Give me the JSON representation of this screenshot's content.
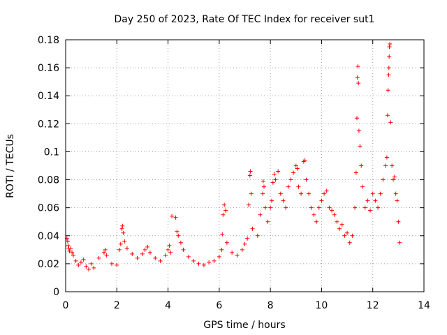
{
  "chart_data": {
    "type": "scatter",
    "title": "Day 250 of 2023, Rate Of TEC Index for receiver sut1",
    "xlabel": "GPS time / hours",
    "ylabel": "ROTI / TECUs",
    "xlim": [
      0,
      14
    ],
    "ylim": [
      0,
      0.18
    ],
    "xticks": [
      0,
      2,
      4,
      6,
      8,
      10,
      12,
      14
    ],
    "xtick_labels": [
      "0",
      "2",
      "4",
      "6",
      "8",
      "10",
      "12",
      "14"
    ],
    "yticks": [
      0,
      0.02,
      0.04,
      0.06,
      0.08,
      0.1,
      0.12,
      0.14,
      0.16,
      0.18
    ],
    "ytick_labels": [
      "0",
      "0.02",
      "0.04",
      "0.06",
      "0.08",
      "0.1",
      "0.12",
      "0.14",
      "0.16",
      "0.18"
    ],
    "grid": true,
    "marker": "+",
    "color": "#ff0000",
    "series": [
      {
        "name": "ROTI",
        "points": [
          [
            0.05,
            0.038
          ],
          [
            0.08,
            0.036
          ],
          [
            0.1,
            0.033
          ],
          [
            0.12,
            0.031
          ],
          [
            0.15,
            0.029
          ],
          [
            0.2,
            0.031
          ],
          [
            0.25,
            0.028
          ],
          [
            0.3,
            0.026
          ],
          [
            0.4,
            0.022
          ],
          [
            0.5,
            0.019
          ],
          [
            0.6,
            0.021
          ],
          [
            0.7,
            0.023
          ],
          [
            0.8,
            0.018
          ],
          [
            0.9,
            0.016
          ],
          [
            1.0,
            0.02
          ],
          [
            1.1,
            0.017
          ],
          [
            1.3,
            0.024
          ],
          [
            1.5,
            0.028
          ],
          [
            1.55,
            0.03
          ],
          [
            1.6,
            0.026
          ],
          [
            1.8,
            0.02
          ],
          [
            2.0,
            0.019
          ],
          [
            2.1,
            0.03
          ],
          [
            2.15,
            0.034
          ],
          [
            2.2,
            0.045
          ],
          [
            2.22,
            0.047
          ],
          [
            2.25,
            0.042
          ],
          [
            2.3,
            0.036
          ],
          [
            2.4,
            0.031
          ],
          [
            2.6,
            0.027
          ],
          [
            2.8,
            0.024
          ],
          [
            3.0,
            0.027
          ],
          [
            3.1,
            0.03
          ],
          [
            3.2,
            0.032
          ],
          [
            3.3,
            0.028
          ],
          [
            3.5,
            0.024
          ],
          [
            3.7,
            0.022
          ],
          [
            3.9,
            0.026
          ],
          [
            4.0,
            0.03
          ],
          [
            4.05,
            0.033
          ],
          [
            4.1,
            0.028
          ],
          [
            4.15,
            0.054
          ],
          [
            4.3,
            0.053
          ],
          [
            4.35,
            0.043
          ],
          [
            4.4,
            0.04
          ],
          [
            4.5,
            0.035
          ],
          [
            4.6,
            0.03
          ],
          [
            4.8,
            0.025
          ],
          [
            5.0,
            0.022
          ],
          [
            5.2,
            0.02
          ],
          [
            5.4,
            0.019
          ],
          [
            5.6,
            0.021
          ],
          [
            5.8,
            0.022
          ],
          [
            6.0,
            0.025
          ],
          [
            6.1,
            0.03
          ],
          [
            6.12,
            0.041
          ],
          [
            6.15,
            0.055
          ],
          [
            6.2,
            0.062
          ],
          [
            6.25,
            0.058
          ],
          [
            6.3,
            0.035
          ],
          [
            6.5,
            0.028
          ],
          [
            6.7,
            0.026
          ],
          [
            6.9,
            0.03
          ],
          [
            7.0,
            0.034
          ],
          [
            7.1,
            0.038
          ],
          [
            7.15,
            0.062
          ],
          [
            7.2,
            0.083
          ],
          [
            7.22,
            0.086
          ],
          [
            7.25,
            0.07
          ],
          [
            7.3,
            0.045
          ],
          [
            7.5,
            0.04
          ],
          [
            7.6,
            0.055
          ],
          [
            7.7,
            0.07
          ],
          [
            7.72,
            0.079
          ],
          [
            7.75,
            0.075
          ],
          [
            7.8,
            0.06
          ],
          [
            7.9,
            0.05
          ],
          [
            8.0,
            0.06
          ],
          [
            8.05,
            0.065
          ],
          [
            8.1,
            0.078
          ],
          [
            8.15,
            0.084
          ],
          [
            8.2,
            0.08
          ],
          [
            8.3,
            0.086
          ],
          [
            8.4,
            0.07
          ],
          [
            8.5,
            0.065
          ],
          [
            8.6,
            0.06
          ],
          [
            8.7,
            0.075
          ],
          [
            8.8,
            0.08
          ],
          [
            8.9,
            0.085
          ],
          [
            9.0,
            0.09
          ],
          [
            9.05,
            0.088
          ],
          [
            9.1,
            0.075
          ],
          [
            9.2,
            0.07
          ],
          [
            9.3,
            0.093
          ],
          [
            9.35,
            0.094
          ],
          [
            9.4,
            0.08
          ],
          [
            9.5,
            0.07
          ],
          [
            9.6,
            0.06
          ],
          [
            9.7,
            0.055
          ],
          [
            9.8,
            0.05
          ],
          [
            9.9,
            0.06
          ],
          [
            10.0,
            0.065
          ],
          [
            10.1,
            0.07
          ],
          [
            10.2,
            0.072
          ],
          [
            10.3,
            0.06
          ],
          [
            10.4,
            0.058
          ],
          [
            10.5,
            0.055
          ],
          [
            10.6,
            0.05
          ],
          [
            10.7,
            0.045
          ],
          [
            10.8,
            0.048
          ],
          [
            10.9,
            0.04
          ],
          [
            11.0,
            0.042
          ],
          [
            11.1,
            0.035
          ],
          [
            11.2,
            0.04
          ],
          [
            11.3,
            0.06
          ],
          [
            11.35,
            0.085
          ],
          [
            11.38,
            0.124
          ],
          [
            11.4,
            0.153
          ],
          [
            11.42,
            0.161
          ],
          [
            11.44,
            0.149
          ],
          [
            11.46,
            0.115
          ],
          [
            11.5,
            0.104
          ],
          [
            11.55,
            0.09
          ],
          [
            11.6,
            0.075
          ],
          [
            11.7,
            0.06
          ],
          [
            11.8,
            0.065
          ],
          [
            11.9,
            0.058
          ],
          [
            12.0,
            0.07
          ],
          [
            12.1,
            0.065
          ],
          [
            12.2,
            0.06
          ],
          [
            12.3,
            0.07
          ],
          [
            12.4,
            0.08
          ],
          [
            12.5,
            0.09
          ],
          [
            12.55,
            0.096
          ],
          [
            12.58,
            0.126
          ],
          [
            12.6,
            0.144
          ],
          [
            12.62,
            0.155
          ],
          [
            12.63,
            0.16
          ],
          [
            12.64,
            0.168
          ],
          [
            12.65,
            0.175
          ],
          [
            12.67,
            0.177
          ],
          [
            12.7,
            0.121
          ],
          [
            12.75,
            0.09
          ],
          [
            12.8,
            0.08
          ],
          [
            12.85,
            0.082
          ],
          [
            12.9,
            0.07
          ],
          [
            12.95,
            0.065
          ],
          [
            13.0,
            0.05
          ],
          [
            13.05,
            0.035
          ]
        ]
      }
    ]
  }
}
